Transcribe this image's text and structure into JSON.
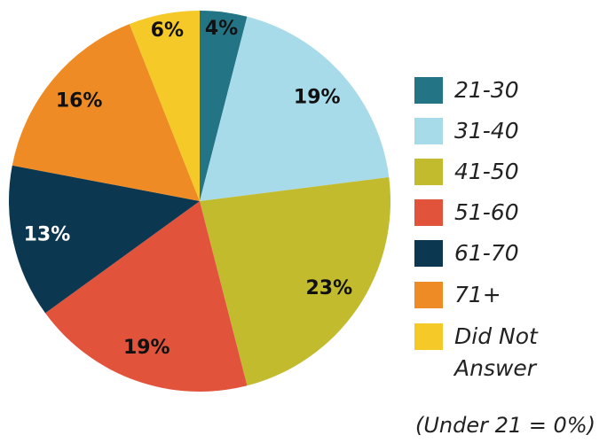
{
  "chart_data": {
    "type": "pie",
    "categories": [
      "21-30",
      "31-40",
      "41-50",
      "51-60",
      "61-70",
      "71+",
      "Did Not Answer"
    ],
    "values": [
      4,
      19,
      23,
      19,
      13,
      16,
      6
    ],
    "value_labels": [
      "4%",
      "19%",
      "23%",
      "19%",
      "13%",
      "16%",
      "6%"
    ],
    "colors": [
      "#237585",
      "#a8dbea",
      "#c2bb2e",
      "#e2533c",
      "#0b3850",
      "#ee8b24",
      "#f5c928"
    ],
    "annotation": "(Under 21 = 0%)"
  }
}
